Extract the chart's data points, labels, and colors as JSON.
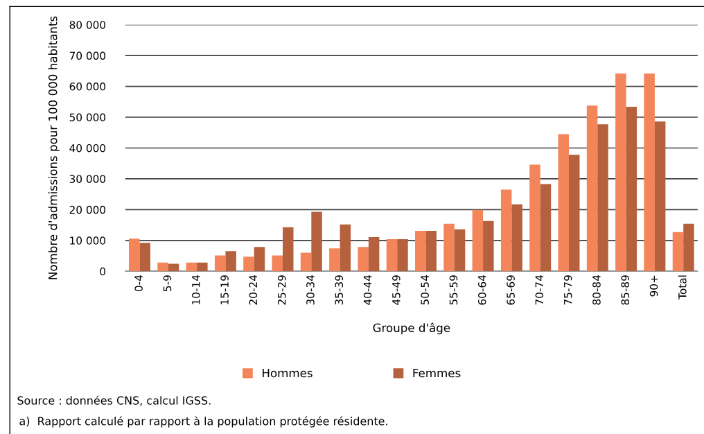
{
  "chart_data": {
    "type": "bar",
    "xlabel": "Groupe d'âge",
    "ylabel": "Nombre d'admissions pour 100 000 habitants",
    "categories": [
      "0-4",
      "5-9",
      "10-14",
      "15-19",
      "20-24",
      "25-29",
      "30-34",
      "35-39",
      "40-44",
      "45-49",
      "50-54",
      "55-59",
      "60-64",
      "65-69",
      "70-74",
      "75-79",
      "80-84",
      "85-89",
      "90+",
      "Total"
    ],
    "series": [
      {
        "name": "Hommes",
        "color": "#f4845a",
        "values": [
          10600,
          2800,
          2800,
          5100,
          4700,
          5100,
          6000,
          7400,
          7900,
          10400,
          13100,
          15400,
          19900,
          26500,
          34600,
          44500,
          53800,
          64200,
          64200,
          12700
        ]
      },
      {
        "name": "Femmes",
        "color": "#b5613d",
        "values": [
          9200,
          2400,
          2800,
          6500,
          7900,
          14300,
          19300,
          15200,
          11100,
          10400,
          13100,
          13600,
          16300,
          21700,
          28300,
          37800,
          47700,
          53400,
          48600,
          15400
        ]
      }
    ],
    "ylim": [
      0,
      80000
    ],
    "yticks": [
      {
        "value": 0,
        "label": "0"
      },
      {
        "value": 10000,
        "label": "10 000"
      },
      {
        "value": 20000,
        "label": "20 000"
      },
      {
        "value": 30000,
        "label": "30 000"
      },
      {
        "value": 40000,
        "label": "40 000"
      },
      {
        "value": 50000,
        "label": "50 000"
      },
      {
        "value": 60000,
        "label": "60 000"
      },
      {
        "value": 70000,
        "label": "70 000"
      },
      {
        "value": 80000,
        "label": "80 000"
      }
    ],
    "grid": "y",
    "legend": "bottom",
    "annotations": [
      "Source : données CNS, calcul IGSS.",
      "a)  Rapport calculé par rapport à la population protégée résidente."
    ]
  }
}
